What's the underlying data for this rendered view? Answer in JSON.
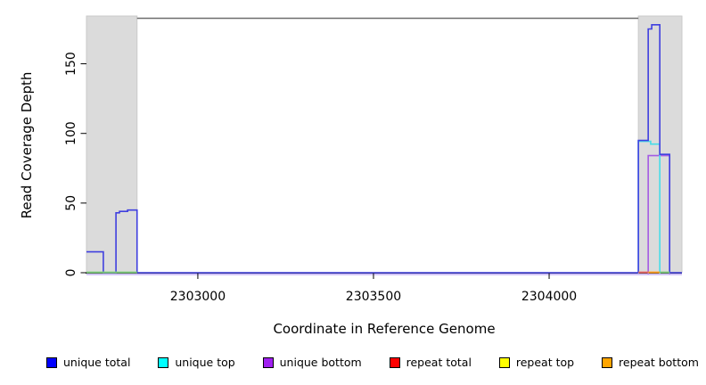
{
  "chart_data": {
    "type": "line",
    "title": "",
    "xlabel": "Coordinate in Reference Genome",
    "ylabel": "Read Coverage Depth",
    "xlim": [
      2302683,
      2304378
    ],
    "ylim": [
      0,
      183
    ],
    "x_ticks": [
      2303000,
      2303500,
      2304000
    ],
    "y_ticks": [
      0,
      50,
      100,
      150
    ],
    "grid": false,
    "legend_position": "bottom",
    "shaded_regions": [
      {
        "name": "left-gray-band",
        "x1": 2302683,
        "x2": 2302827,
        "color": "#DBDBDB"
      },
      {
        "name": "right-gray-band",
        "x1": 2304254,
        "x2": 2304378,
        "color": "#DBDBDB"
      }
    ],
    "top_border_color": "#6E6E6E",
    "underlay_color": "#C3B1F4",
    "series": [
      {
        "name": "unique bottom",
        "color": "#A45CE4",
        "points": [
          [
            2304282,
            0
          ],
          [
            2304282,
            85
          ],
          [
            2304343,
            85
          ],
          [
            2304343,
            0
          ]
        ]
      },
      {
        "name": "unique top",
        "color": "#45DCE8",
        "points": [
          [
            2304254,
            0
          ],
          [
            2304254,
            95
          ],
          [
            2304289,
            95
          ],
          [
            2304289,
            93
          ],
          [
            2304315,
            93
          ],
          [
            2304315,
            0
          ]
        ]
      },
      {
        "name": "unique total",
        "color": "#4040DF",
        "points": [
          [
            2302683,
            15
          ],
          [
            2302731,
            15
          ],
          [
            2302731,
            0
          ],
          [
            2302767,
            0
          ],
          [
            2302767,
            43
          ],
          [
            2302777,
            43
          ],
          [
            2302777,
            44
          ],
          [
            2302800,
            44
          ],
          [
            2302800,
            45
          ],
          [
            2302827,
            45
          ],
          [
            2302827,
            0
          ],
          [
            2304254,
            0
          ],
          [
            2304254,
            95
          ],
          [
            2304282,
            95
          ],
          [
            2304282,
            175
          ],
          [
            2304292,
            175
          ],
          [
            2304292,
            178
          ],
          [
            2304315,
            178
          ],
          [
            2304315,
            85
          ],
          [
            2304343,
            85
          ],
          [
            2304343,
            0
          ],
          [
            2304378,
            0
          ]
        ]
      }
    ],
    "baseline_segments": [
      {
        "name": "green-left",
        "color": "#7FCC7F",
        "x1": 2302683,
        "x2": 2302827,
        "value": 0
      },
      {
        "name": "red-segment",
        "color": "#E86A6A",
        "x1": 2304254,
        "x2": 2304282,
        "value": 0
      },
      {
        "name": "orange-segment",
        "color": "#FFA024",
        "x1": 2304282,
        "x2": 2304315,
        "value": 0
      },
      {
        "name": "green-right",
        "color": "#7FCC7F",
        "x1": 2304315,
        "x2": 2304343,
        "value": 0
      }
    ]
  },
  "legend": {
    "items": [
      {
        "label": "unique total",
        "color": "#0000FF"
      },
      {
        "label": "unique top",
        "color": "#00FFFF"
      },
      {
        "label": "unique bottom",
        "color": "#A020F0"
      },
      {
        "label": "repeat total",
        "color": "#FF0000"
      },
      {
        "label": "repeat top",
        "color": "#FFFF00"
      },
      {
        "label": "repeat bottom",
        "color": "#FFA500"
      }
    ]
  }
}
